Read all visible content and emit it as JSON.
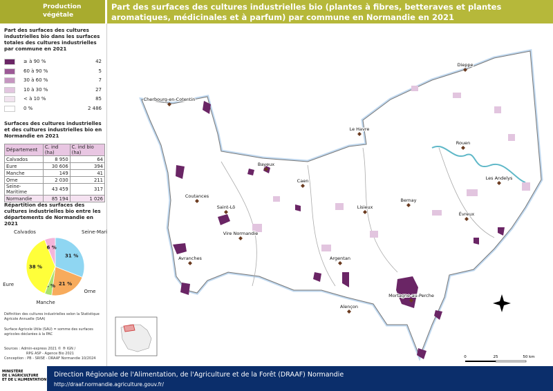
{
  "header": {
    "section": "Production végétale",
    "title": "Part des surfaces des cultures industrielles bio (plantes à fibres, betteraves et plantes aromatiques, médicinales et à parfum) par commune en Normandie en 2021"
  },
  "legend": {
    "title": "Part des surfaces des cultures industrielles bio dans les surfaces totales des cultures industrielles par commune en 2021",
    "classes": [
      {
        "label": "≥ à 90 %",
        "count": "42",
        "color": "#6a2565"
      },
      {
        "label": "60 à 90 %",
        "count": "5",
        "color": "#9c5a96"
      },
      {
        "label": "30 à 60 %",
        "count": "7",
        "color": "#c596c0"
      },
      {
        "label": "10 à 30 %",
        "count": "27",
        "color": "#e2c5df"
      },
      {
        "label": "< à 10 %",
        "count": "85",
        "color": "#f1e4ef"
      },
      {
        "label": "0 %",
        "count": "2 486",
        "color": "#ffffff"
      }
    ]
  },
  "table": {
    "title": "Surfaces des cultures industrielles et des cultures industrielles bio en Normandie en 2021",
    "columns": [
      "Département",
      "C. ind (ha)",
      "C. ind bio (ha)"
    ],
    "rows": [
      [
        "Calvados",
        "8 950",
        "64"
      ],
      [
        "Eure",
        "30 606",
        "394"
      ],
      [
        "Manche",
        "149",
        "41"
      ],
      [
        "Orne",
        "2 030",
        "211"
      ],
      [
        "Seine-Maritime",
        "43 459",
        "317"
      ],
      [
        "Normandie",
        "85 194",
        "1 026"
      ]
    ]
  },
  "pie": {
    "title": "Répartition des surfaces des cultures industrielles bio entre les départements de Normandie en 2021",
    "slices": [
      {
        "name": "Seine-Maritime",
        "value": 31,
        "label": "31 %",
        "color": "#8fd6f2"
      },
      {
        "name": "Orne",
        "value": 21,
        "label": "21 %",
        "color": "#f7ab5c"
      },
      {
        "name": "Manche",
        "value": 4,
        "label": "4 %",
        "color": "#a9e36e"
      },
      {
        "name": "Eure",
        "value": 38,
        "label": "38 %",
        "color": "#ffff3a"
      },
      {
        "name": "Calvados",
        "value": 6,
        "label": "6 %",
        "color": "#f5b5da"
      }
    ]
  },
  "notes": [
    "Définition des cultures industrielles selon la Statistique Agricole Annuelle (SAA)",
    "Surface Agricole Utile (SAU) = somme des surfaces agricoles déclarées à la PAC"
  ],
  "sources": [
    "Sources       : Admin-express 2021 © ® IGN /",
    "RPG ASP - Agence Bio 2021",
    "Conception : PB - SRISE - DRAAF Normandie 10/2024"
  ],
  "map": {
    "cities": [
      "Dieppe",
      "Cherbourg-en-Cotentin",
      "Le Havre",
      "Rouen",
      "Bayeux",
      "Caen",
      "Les Andelys",
      "Saint-Lô",
      "Lisieux",
      "Coutances",
      "Bernay",
      "Évreux",
      "Vire Normandie",
      "Argentan",
      "Avranches",
      "Mortagne-au-Perche",
      "Alençon"
    ],
    "scale": [
      "0",
      "25",
      "50 km"
    ]
  },
  "footer": {
    "logo": [
      "MINISTÈRE",
      "DE L'AGRICULTURE",
      "ET DE L'ALIMENTATION"
    ],
    "org": "Direction Régionale de l'Alimentation, de l'Agriculture et de la Forêt (DRAAF) Normandie",
    "url": "http://draaf.normandie.agriculture.gouv.fr/"
  }
}
